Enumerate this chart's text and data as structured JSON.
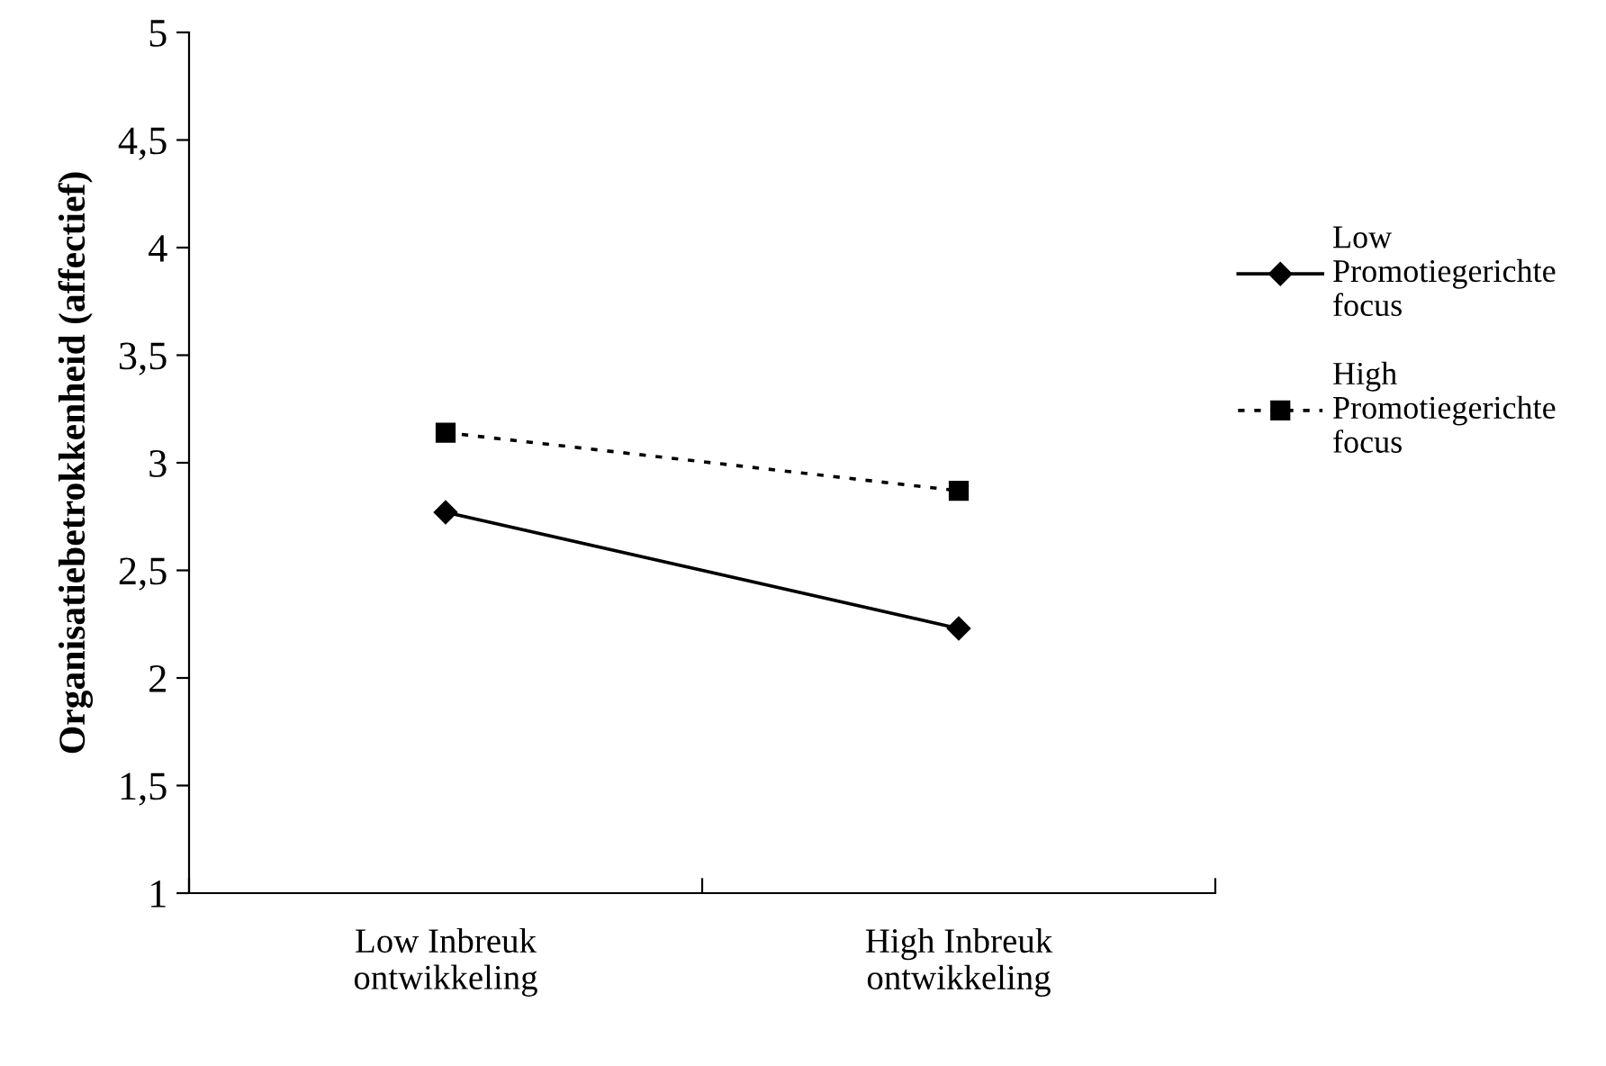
{
  "chart_data": {
    "type": "line",
    "ylabel": "Organisatiebetrokkenheid (affectief)",
    "categories": [
      "Low Inbreuk\nontwikkeling",
      "High Inbreuk\nontwikkeling"
    ],
    "series": [
      {
        "name": "Low\nPromotiegerichte\nfocus",
        "color": "#000000",
        "values": [
          2.77,
          2.23
        ],
        "marker": "diamond",
        "line_style": "solid"
      },
      {
        "name": "High\nPromotiegerichte\nfocus",
        "color": "#000000",
        "values": [
          3.14,
          2.87
        ],
        "marker": "square",
        "line_style": "dotted"
      }
    ],
    "ylim": [
      1,
      5
    ],
    "yticks": [
      1,
      {
        "value": 1.5,
        "label": "1,5"
      },
      2,
      {
        "value": 2.5,
        "label": "2,5"
      },
      3,
      {
        "value": 3.5,
        "label": "3,5"
      },
      4,
      {
        "value": 4.5,
        "label": "4,5"
      },
      5
    ],
    "grid": false,
    "legend": "right"
  }
}
